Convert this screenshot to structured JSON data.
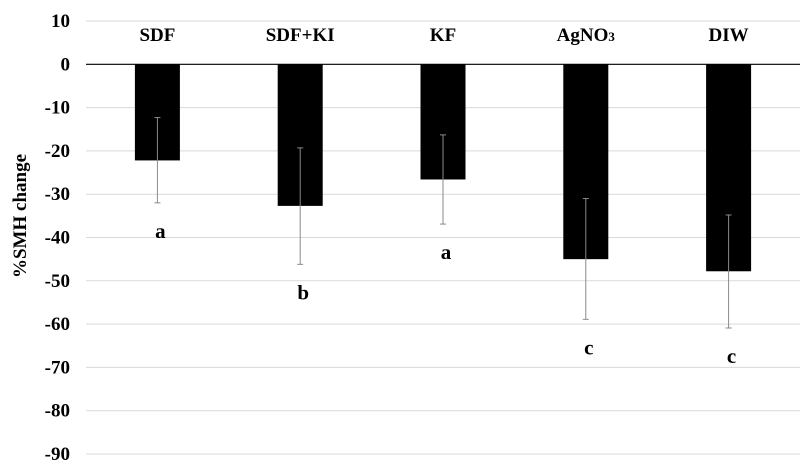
{
  "chart_data": {
    "type": "bar",
    "title": "",
    "xlabel": "",
    "ylabel": "%SMH change",
    "ylim": [
      -90,
      10
    ],
    "yticks": [
      10,
      0,
      -10,
      -20,
      -30,
      -40,
      -50,
      -60,
      -70,
      -80,
      -90
    ],
    "grid": true,
    "categories": [
      "SDF",
      "SDF+KI",
      "KF",
      "AgNO3",
      "DIW"
    ],
    "category_labels": [
      {
        "main": "SDF",
        "sub": ""
      },
      {
        "main": "SDF+KI",
        "sub": ""
      },
      {
        "main": "KF",
        "sub": ""
      },
      {
        "main": "AgNO",
        "sub": "3"
      },
      {
        "main": "DIW",
        "sub": ""
      }
    ],
    "values": [
      -22.2,
      -32.7,
      -26.6,
      -45.0,
      -47.8
    ],
    "error_bars": [
      {
        "low": -32.0,
        "high": -12.3
      },
      {
        "low": -46.2,
        "high": -19.3
      },
      {
        "low": -36.9,
        "high": -16.3
      },
      {
        "low": -58.9,
        "high": -31.0
      },
      {
        "low": -60.9,
        "high": -34.8
      }
    ],
    "significance_labels": [
      "a",
      "b",
      "a",
      "c",
      "c"
    ],
    "colors": {
      "bar": "#000000",
      "error_bar": "#8a8a8a",
      "grid": "#d9d9d9"
    }
  }
}
